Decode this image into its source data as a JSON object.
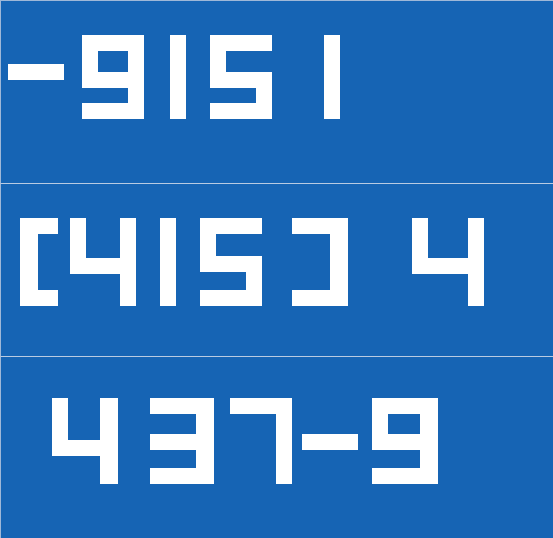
{
  "lines": [
    {
      "text": "-9151"
    },
    {
      "text": "[415] 4"
    },
    {
      "text": "437-9"
    }
  ],
  "colors": {
    "background": "#1664b4",
    "text": "#ffffff",
    "separator": "#b9cbe2"
  }
}
